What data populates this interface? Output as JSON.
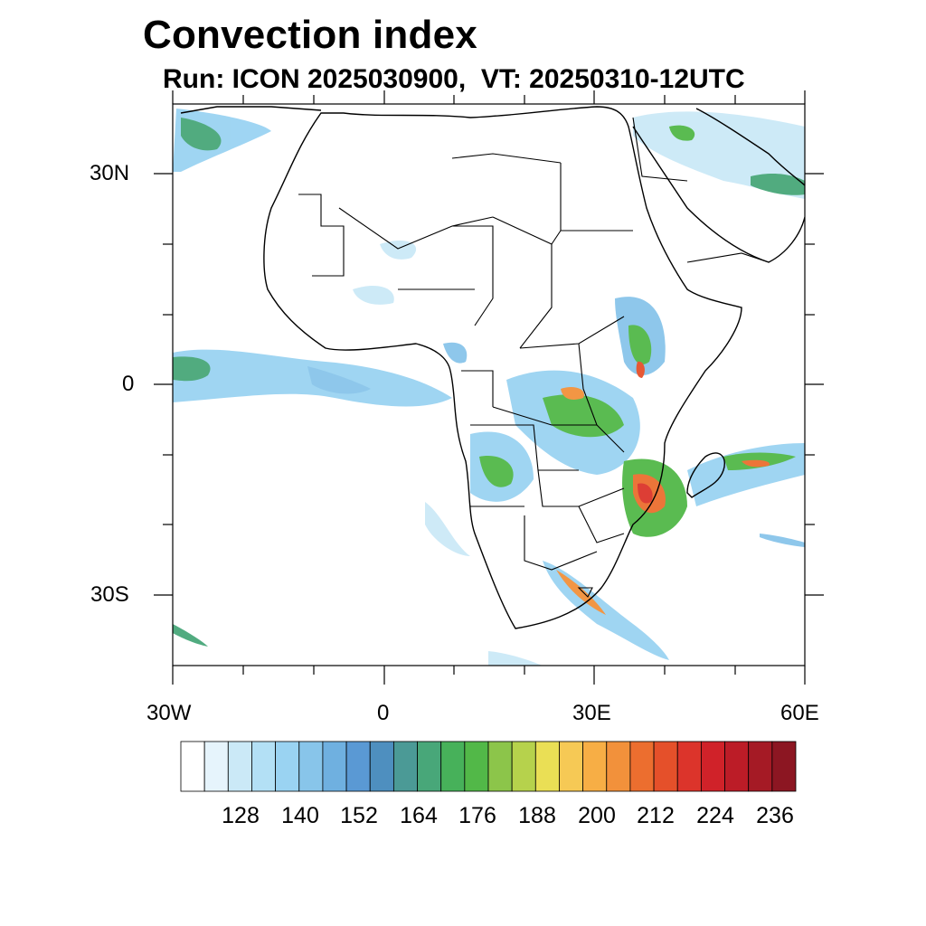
{
  "title": "Convection index",
  "subtitle": "Run: ICON 2025030900,  VT: 20250310-12UTC",
  "axes": {
    "x_ticks": [
      "30W",
      "0",
      "30E",
      "60E"
    ],
    "y_ticks": [
      "30N",
      "0",
      "30S"
    ],
    "lon_range": [
      -30,
      60
    ],
    "lat_range": [
      -40,
      40
    ]
  },
  "colorbar": {
    "labels": [
      "128",
      "140",
      "152",
      "164",
      "176",
      "188",
      "200",
      "212",
      "224",
      "236"
    ],
    "colors": [
      "#ffffff",
      "#e6f4fc",
      "#cbe9f7",
      "#b3e0f5",
      "#9ad3f2",
      "#88c5ea",
      "#6fb0e0",
      "#5a99d4",
      "#4e8fbf",
      "#4b9a96",
      "#48a779",
      "#47b15a",
      "#52b848",
      "#8cc54a",
      "#b6d24c",
      "#eadf55",
      "#f6c955",
      "#f7ae45",
      "#f2913b",
      "#ec6e2f",
      "#e5502a",
      "#dc342b",
      "#d02229",
      "#bc1c27",
      "#a51a25",
      "#8c1622"
    ]
  },
  "legend_name": "Convection index"
}
